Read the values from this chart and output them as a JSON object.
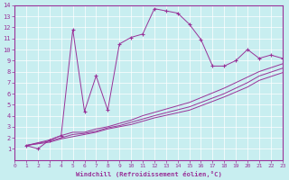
{
  "xlabel": "Windchill (Refroidissement éolien,°C)",
  "bg_color": "#c8eef0",
  "grid_color": "#aadddd",
  "line_color": "#993399",
  "spine_color": "#993399",
  "main_x": [
    1,
    2,
    3,
    4,
    5,
    6,
    7,
    8,
    9,
    10,
    11,
    12,
    13,
    14,
    15,
    16,
    17,
    18,
    19,
    20,
    21,
    22,
    23
  ],
  "main_y": [
    1.3,
    1.0,
    1.8,
    2.2,
    11.8,
    4.4,
    7.6,
    4.5,
    10.5,
    11.1,
    11.4,
    13.7,
    13.5,
    13.3,
    12.3,
    10.9,
    8.5,
    8.5,
    9.0,
    10.0,
    9.2,
    9.5,
    9.2
  ],
  "trend1_x": [
    1,
    3,
    4,
    5,
    6,
    7,
    8,
    9,
    10,
    11,
    12,
    15,
    18,
    20,
    21,
    23
  ],
  "trend1_y": [
    1.3,
    1.8,
    2.2,
    2.5,
    2.5,
    2.8,
    3.0,
    3.3,
    3.6,
    4.0,
    4.3,
    5.2,
    6.5,
    7.5,
    8.0,
    8.7
  ],
  "trend2_x": [
    1,
    3,
    4,
    5,
    6,
    7,
    8,
    9,
    10,
    11,
    12,
    15,
    18,
    20,
    21,
    23
  ],
  "trend2_y": [
    1.3,
    1.7,
    2.0,
    2.3,
    2.4,
    2.6,
    2.9,
    3.1,
    3.4,
    3.7,
    4.0,
    4.8,
    6.0,
    7.0,
    7.6,
    8.3
  ],
  "trend3_x": [
    1,
    3,
    4,
    5,
    6,
    7,
    8,
    9,
    10,
    11,
    12,
    15,
    18,
    20,
    21,
    23
  ],
  "trend3_y": [
    1.3,
    1.6,
    1.9,
    2.1,
    2.3,
    2.5,
    2.8,
    3.0,
    3.2,
    3.5,
    3.8,
    4.5,
    5.7,
    6.6,
    7.2,
    7.9
  ],
  "xlim": [
    0,
    23
  ],
  "ylim": [
    0,
    14
  ],
  "xticks": [
    0,
    1,
    2,
    3,
    4,
    5,
    6,
    7,
    8,
    9,
    10,
    11,
    12,
    13,
    14,
    15,
    16,
    17,
    18,
    19,
    20,
    21,
    22,
    23
  ],
  "yticks": [
    1,
    2,
    3,
    4,
    5,
    6,
    7,
    8,
    9,
    10,
    11,
    12,
    13,
    14
  ]
}
